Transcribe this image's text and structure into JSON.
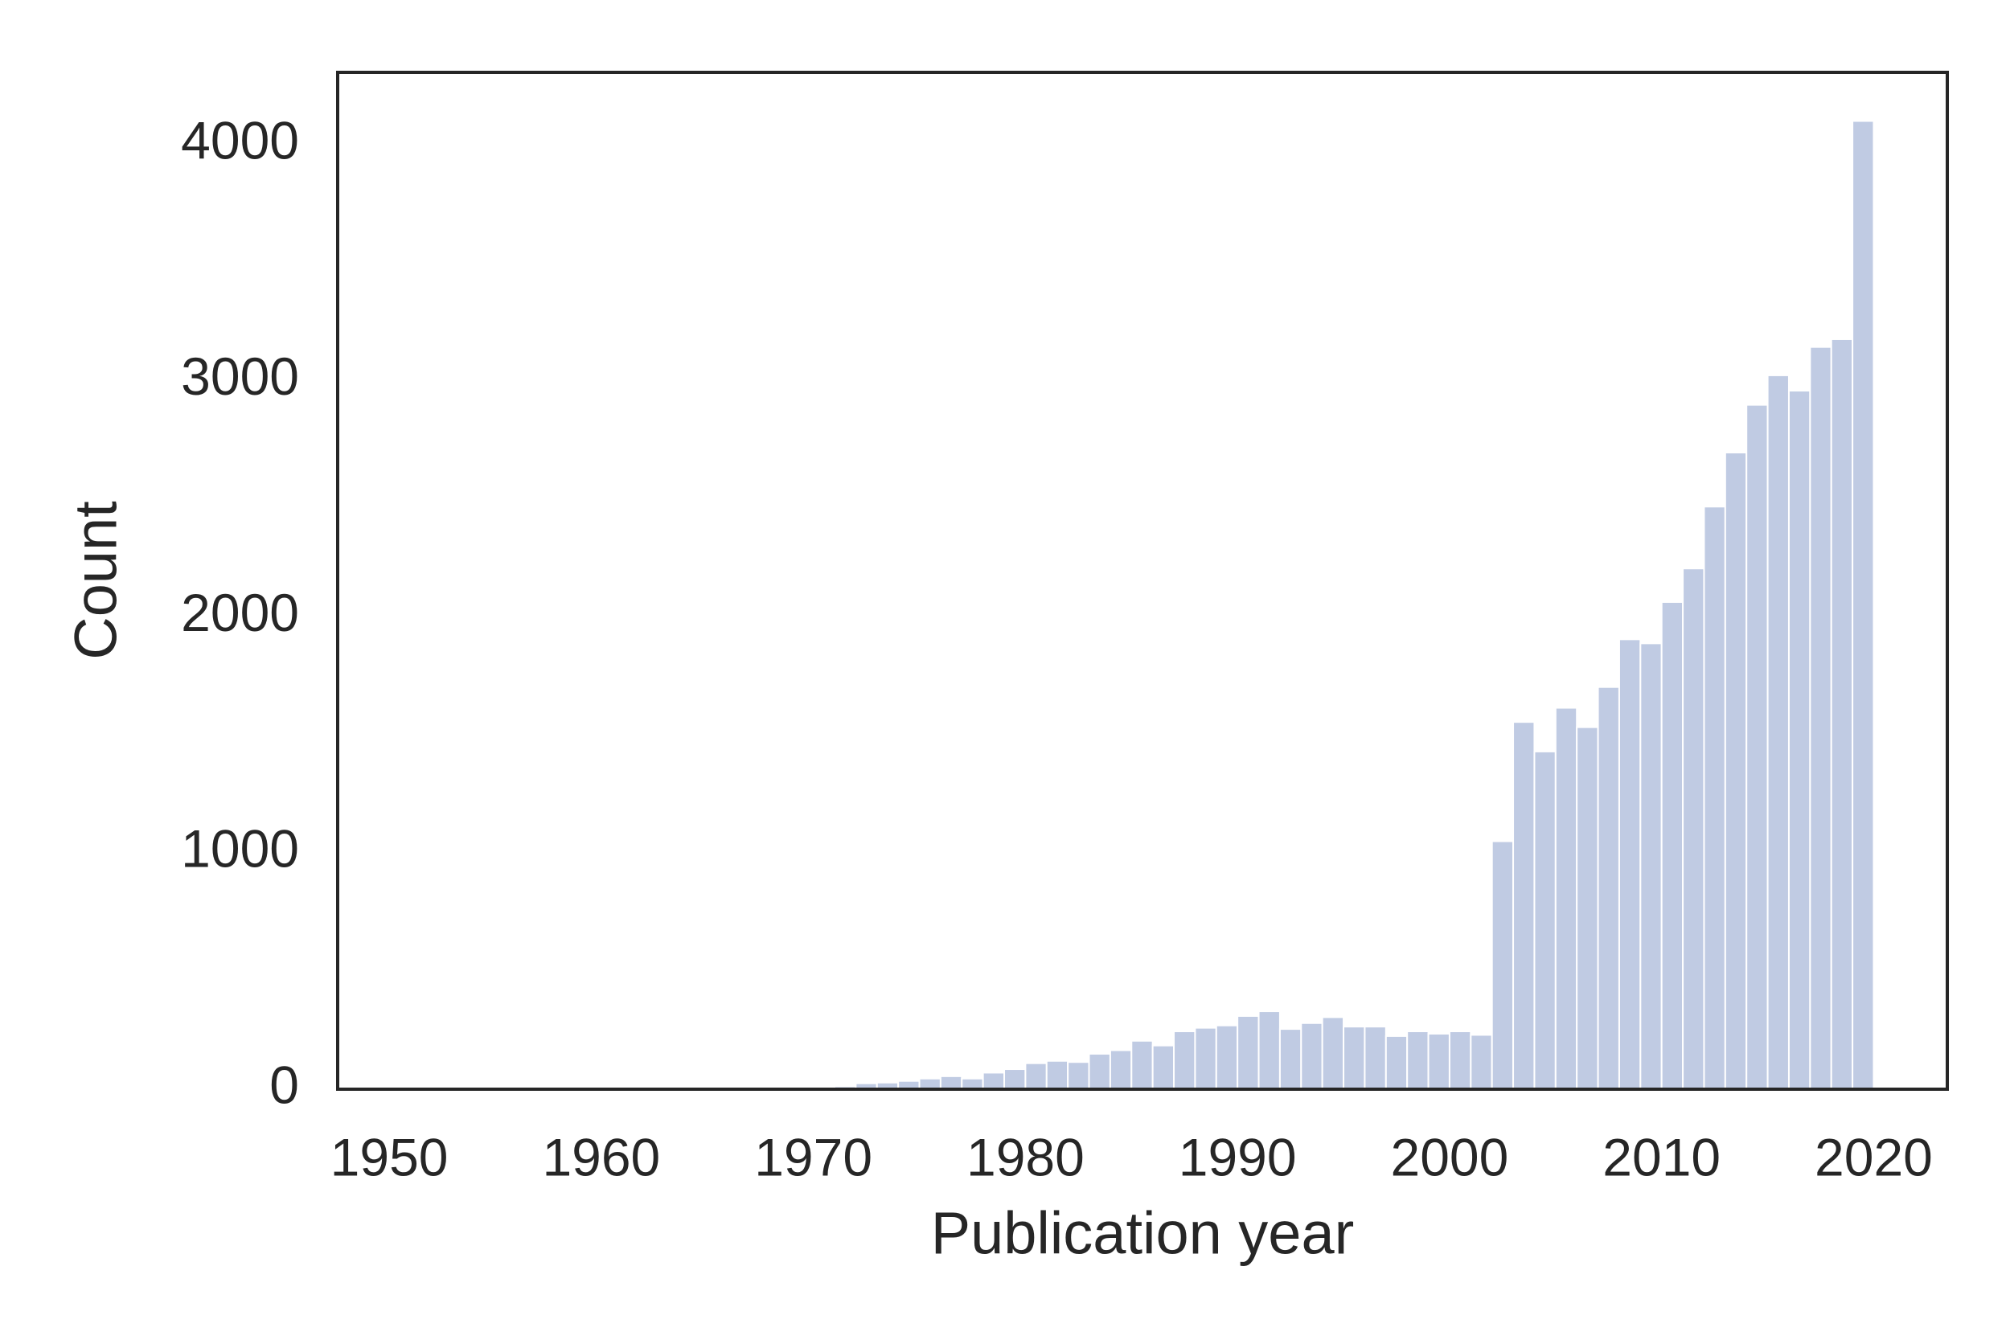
{
  "chart_data": {
    "type": "histogram",
    "xlabel": "Publication year",
    "ylabel": "Count",
    "bins": [
      1950,
      1951,
      1952,
      1953,
      1954,
      1955,
      1956,
      1957,
      1958,
      1959,
      1960,
      1961,
      1962,
      1963,
      1964,
      1965,
      1966,
      1967,
      1968,
      1969,
      1970,
      1971,
      1972,
      1973,
      1974,
      1975,
      1976,
      1977,
      1978,
      1979,
      1980,
      1981,
      1982,
      1983,
      1984,
      1985,
      1986,
      1987,
      1988,
      1989,
      1990,
      1991,
      1992,
      1993,
      1994,
      1995,
      1996,
      1997,
      1998,
      1999,
      2000,
      2001,
      2002,
      2003,
      2004,
      2005,
      2006,
      2007,
      2008,
      2009,
      2010,
      2011,
      2012,
      2013,
      2014,
      2015,
      2016,
      2017,
      2018,
      2019,
      2020
    ],
    "values": [
      1,
      0,
      1,
      0,
      1,
      1,
      2,
      1,
      2,
      2,
      3,
      2,
      3,
      4,
      3,
      4,
      5,
      5,
      6,
      10,
      8,
      12,
      25,
      28,
      35,
      45,
      55,
      45,
      70,
      85,
      110,
      120,
      115,
      150,
      165,
      205,
      185,
      245,
      260,
      270,
      310,
      330,
      255,
      280,
      305,
      265,
      265,
      225,
      245,
      235,
      245,
      230,
      1050,
      1555,
      1430,
      1615,
      1533,
      1703,
      1905,
      1888,
      2063,
      2205,
      2467,
      2696,
      2898,
      3023,
      2958,
      3143,
      3176,
      4100
    ],
    "color": "#c0cbe3",
    "xlim": [
      1947.57,
      2023.47
    ],
    "xticks": [
      1950,
      1960,
      1970,
      1980,
      1990,
      2000,
      2010,
      2020
    ],
    "ylim": [
      0,
      4306
    ],
    "yticks": [
      0,
      1000,
      2000,
      3000,
      4000
    ],
    "grid": false
  }
}
